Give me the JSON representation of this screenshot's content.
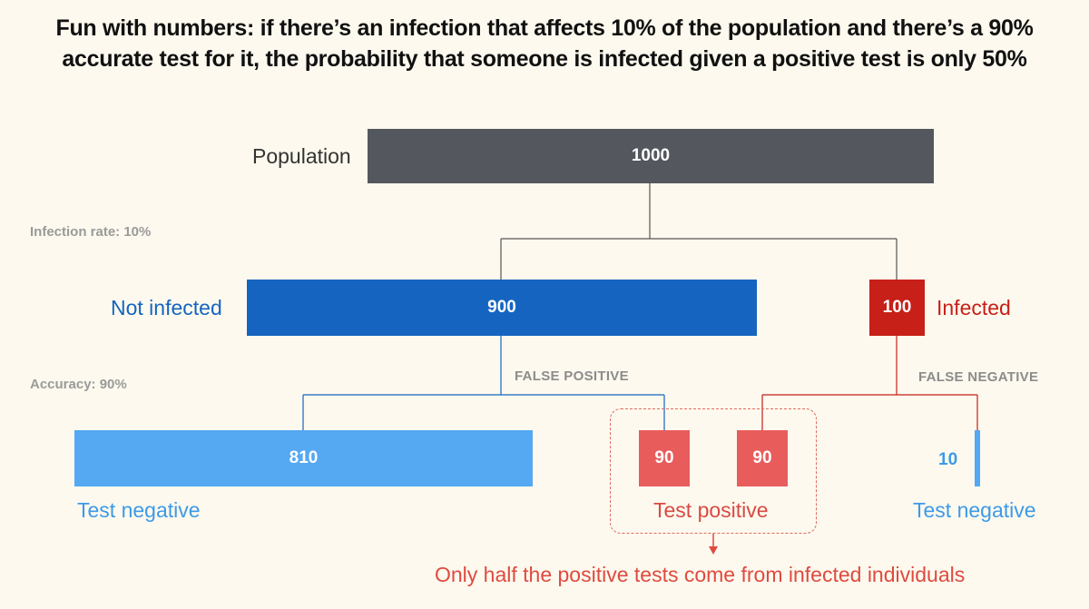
{
  "title": {
    "line1": "Fun with numbers: if there’s an infection that affects 10% of the population and there’s a 90%",
    "line2": "accurate test for it, the probability that someone is infected given a positive test is only 50%"
  },
  "rates": {
    "infection_rate": "Infection rate: 10%",
    "accuracy": "Accuracy: 90%"
  },
  "nodes": {
    "population": {
      "label": "Population",
      "value": "1000"
    },
    "not_infected": {
      "label": "Not infected",
      "value": "900"
    },
    "infected": {
      "label": "Infected",
      "value": "100"
    },
    "true_negative": {
      "value": "810",
      "label": "Test negative"
    },
    "false_positive": {
      "value": "90",
      "tag": "FALSE POSITIVE"
    },
    "true_positive": {
      "value": "90"
    },
    "false_negative": {
      "value": "10",
      "label": "Test negative",
      "tag": "FALSE NEGATIVE"
    }
  },
  "test_positive_label": "Test positive",
  "conclusion": "Only half the positive tests come from infected individuals",
  "colors": {
    "background": "#fdf9ee",
    "population": "#54575d",
    "not_infected": "#1565c0",
    "infected": "#c62018",
    "test_negative": "#55a8f2",
    "test_positive": "#e85c5c",
    "annotation": "#e04a40"
  }
}
